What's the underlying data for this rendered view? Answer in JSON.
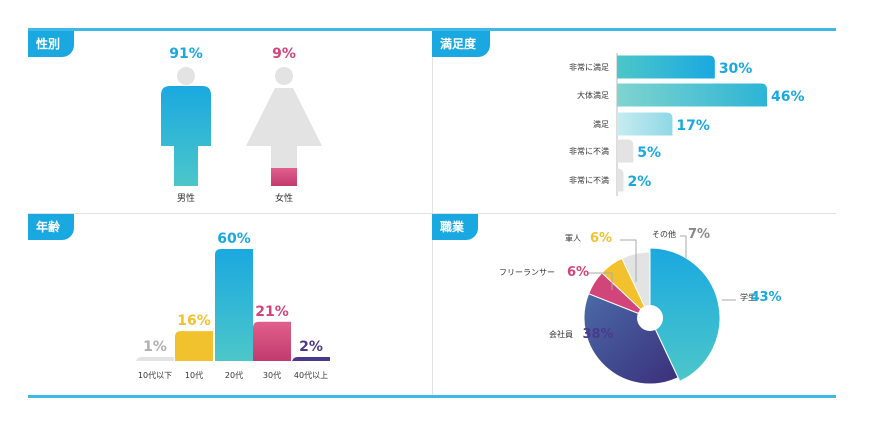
{
  "panels": {
    "gender_title": "性別",
    "satisfaction_title": "満足度",
    "age_title": "年齢",
    "occupation_title": "職業"
  },
  "colors": {
    "blue": "#1aa8e0",
    "teal": "#4cc7c9",
    "pink": "#d1457a",
    "yellow": "#f2c12e",
    "purple": "#4b3a8c",
    "gray": "#e3e3e3"
  },
  "chart_data": [
    {
      "type": "bar",
      "title": "性別",
      "categories": [
        "男性",
        "女性"
      ],
      "values": [
        91,
        9
      ],
      "value_labels": [
        "91%",
        "9%"
      ],
      "ylim": [
        0,
        100
      ]
    },
    {
      "type": "bar",
      "orientation": "horizontal",
      "title": "満足度",
      "categories": [
        "非常に満足",
        "大体満足",
        "満足",
        "非常に不満",
        "非常に不満"
      ],
      "values": [
        30,
        46,
        17,
        5,
        2
      ],
      "value_labels": [
        "30%",
        "46%",
        "17%",
        "5%",
        "2%"
      ],
      "xlim": [
        0,
        50
      ]
    },
    {
      "type": "bar",
      "title": "年齢",
      "categories": [
        "10代以下",
        "10代",
        "20代",
        "30代",
        "40代以上"
      ],
      "values": [
        1,
        16,
        60,
        21,
        2
      ],
      "value_labels": [
        "1%",
        "16%",
        "60%",
        "21%",
        "2%"
      ],
      "ylim": [
        0,
        60
      ]
    },
    {
      "type": "pie",
      "title": "職業",
      "categories": [
        "学生",
        "会社員",
        "フリーランサー",
        "軍人",
        "その他"
      ],
      "values": [
        43,
        38,
        6,
        6,
        7
      ],
      "value_labels": [
        "43%",
        "38%",
        "6%",
        "6%",
        "7%"
      ]
    }
  ]
}
